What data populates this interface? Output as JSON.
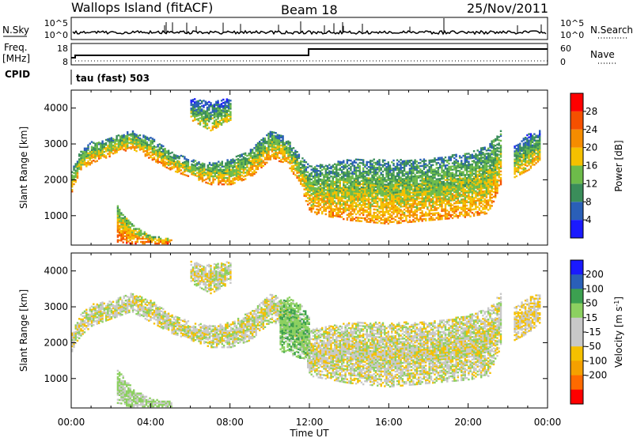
{
  "header": {
    "title_left": "Wallops Island (fitACF)",
    "title_mid": "Beam 18",
    "title_right": "25/Nov/2011"
  },
  "panels": {
    "nsky": {
      "label": "N.Sky",
      "right_label": "N.Search",
      "left_ticks": [
        "10^5",
        "10^0"
      ],
      "right_ticks": [
        "10^5",
        "10^0"
      ]
    },
    "freq": {
      "label_line1": "Freq.",
      "label_line2": "[MHz]",
      "left_ticks": [
        "18",
        "8"
      ],
      "right_label": "Nave",
      "right_ticks": [
        "60",
        "0"
      ]
    },
    "cpid": {
      "label": "CPID",
      "text": "tau (fast) 503"
    }
  },
  "colors": {
    "power": [
      "#1a1aff",
      "#2a5fb8",
      "#3a8d5a",
      "#6dbb4a",
      "#f5c000",
      "#f58c00",
      "#f55000",
      "#ff0000"
    ],
    "velocity": [
      "#ff0000",
      "#ff6a00",
      "#f5a000",
      "#f5c000",
      "#c8c8c8",
      "#c8c8c8",
      "#8cd060",
      "#3ca050",
      "#2a5fb8",
      "#1a1aff"
    ]
  },
  "chart_data": [
    {
      "type": "heatmap",
      "name": "power",
      "x": [
        "00:00",
        "04:00",
        "08:00",
        "12:00",
        "16:00",
        "20:00",
        "00:00"
      ],
      "xlabel": "Time UT",
      "ylabel": "Slant Range [km]",
      "yticks": [
        1000,
        2000,
        3000,
        4000
      ],
      "ylim": [
        180,
        4500
      ],
      "colorbar_label": "Power [dB]",
      "colorbar_ticks": [
        4,
        8,
        12,
        16,
        20,
        24,
        28
      ],
      "colorbar_range": [
        0,
        32
      ],
      "echo_bands": [
        {
          "name": "main",
          "time_h": [
            0.0,
            0.4,
            1.0,
            2.0,
            3.0,
            4.0,
            5.0,
            6.0,
            7.0,
            8.0,
            9.0,
            10.0,
            10.8,
            11.5,
            12.0,
            13.0,
            14.0,
            15.0,
            16.0,
            17.0,
            18.0,
            19.0,
            20.0,
            21.0,
            21.6
          ],
          "lower_km": [
            1700,
            2200,
            2500,
            2700,
            2900,
            2600,
            2300,
            2100,
            1900,
            1900,
            2100,
            2600,
            2500,
            1900,
            1100,
            1000,
            900,
            850,
            800,
            850,
            900,
            950,
            1000,
            1100,
            1900
          ],
          "upper_km": [
            2300,
            2800,
            3100,
            3200,
            3400,
            3200,
            2800,
            2600,
            2500,
            2600,
            2900,
            3400,
            3200,
            2700,
            2400,
            2500,
            2600,
            2600,
            2600,
            2600,
            2600,
            2700,
            2800,
            3000,
            3400
          ],
          "power_db": 22
        },
        {
          "name": "near",
          "time_h": [
            2.3,
            3.0,
            4.0,
            5.0
          ],
          "lower_km": [
            300,
            250,
            250,
            250
          ],
          "upper_km": [
            1300,
            800,
            450,
            400
          ],
          "power_db": 26
        },
        {
          "name": "morning",
          "time_h": [
            6.0,
            7.0,
            8.0
          ],
          "lower_km": [
            3700,
            3400,
            3700
          ],
          "upper_km": [
            4300,
            4200,
            4300
          ],
          "power_db": 18
        },
        {
          "name": "late",
          "time_h": [
            22.3,
            23.0,
            23.6
          ],
          "lower_km": [
            2100,
            2300,
            2600
          ],
          "upper_km": [
            3000,
            3300,
            3400
          ],
          "power_db": 20
        }
      ]
    },
    {
      "type": "heatmap",
      "name": "velocity",
      "x": [
        "00:00",
        "04:00",
        "08:00",
        "12:00",
        "16:00",
        "20:00",
        "00:00"
      ],
      "xlabel": "Time UT",
      "ylabel": "Slant Range [km]",
      "yticks": [
        1000,
        2000,
        3000,
        4000
      ],
      "ylim": [
        180,
        4500
      ],
      "colorbar_label": "Velocity [m s^-1]",
      "colorbar_ticks": [
        200,
        100,
        50,
        15,
        -15,
        -50,
        -100,
        -200
      ],
      "colorbar_range": [
        -250,
        250
      ],
      "echo_bands": [
        {
          "name": "main",
          "time_h": [
            0.0,
            0.4,
            1.0,
            2.0,
            3.0,
            4.0,
            5.0,
            6.0,
            7.0,
            8.0,
            9.0,
            10.0,
            10.8,
            11.5,
            12.0,
            13.0,
            14.0,
            15.0,
            16.0,
            17.0,
            18.0,
            19.0,
            20.0,
            21.0,
            21.6
          ],
          "lower_km": [
            1700,
            2200,
            2500,
            2700,
            2900,
            2600,
            2300,
            2100,
            1900,
            1900,
            2100,
            2600,
            2500,
            1900,
            1100,
            1000,
            900,
            850,
            800,
            850,
            900,
            950,
            1000,
            1100,
            1900
          ],
          "upper_km": [
            2300,
            2800,
            3100,
            3200,
            3400,
            3200,
            2800,
            2600,
            2500,
            2600,
            2900,
            3400,
            3200,
            2700,
            2400,
            2500,
            2600,
            2600,
            2600,
            2600,
            2600,
            2700,
            2800,
            3000,
            3400
          ],
          "velocity_ms": 0
        },
        {
          "name": "near",
          "time_h": [
            2.3,
            3.0,
            4.0,
            5.0
          ],
          "lower_km": [
            300,
            250,
            250,
            250
          ],
          "upper_km": [
            1300,
            800,
            450,
            400
          ],
          "velocity_ms": 20
        },
        {
          "name": "morning",
          "time_h": [
            6.0,
            7.0,
            8.0
          ],
          "lower_km": [
            3700,
            3400,
            3700
          ],
          "upper_km": [
            4300,
            4200,
            4300
          ],
          "velocity_ms": 0
        },
        {
          "name": "late",
          "time_h": [
            22.3,
            23.0,
            23.6
          ],
          "lower_km": [
            2100,
            2300,
            2600
          ],
          "upper_km": [
            3000,
            3300,
            3400
          ],
          "velocity_ms": -15
        },
        {
          "name": "green_spread",
          "time_h": [
            10.5,
            11.0,
            11.5,
            12.0
          ],
          "lower_km": [
            1800,
            1700,
            1600,
            1600
          ],
          "upper_km": [
            3200,
            3300,
            3100,
            2800
          ],
          "velocity_ms": 40
        }
      ]
    }
  ]
}
